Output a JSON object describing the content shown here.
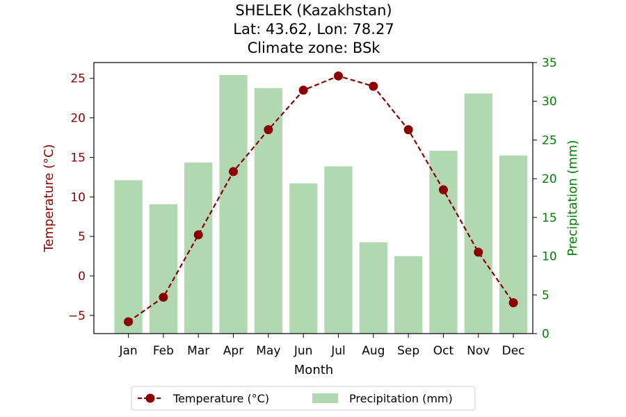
{
  "chart_data": {
    "type": "bar+line",
    "title_lines": [
      "SHELEK (Kazakhstan)",
      "Lat: 43.62, Lon: 78.27",
      "Climate zone: BSk"
    ],
    "xlabel": "Month",
    "categories": [
      "Jan",
      "Feb",
      "Mar",
      "Apr",
      "May",
      "Jun",
      "Jul",
      "Aug",
      "Sep",
      "Oct",
      "Nov",
      "Dec"
    ],
    "left_axis": {
      "label": "Temperature (°C)",
      "ylim": [
        -7.3,
        27
      ],
      "ticks": [
        -5,
        0,
        5,
        10,
        15,
        20,
        25
      ],
      "tick_labels": [
        "−5",
        "0",
        "5",
        "10",
        "15",
        "20",
        "25"
      ],
      "color": "#8b0000"
    },
    "right_axis": {
      "label": "Precipitation (mm)",
      "ylim": [
        0,
        35
      ],
      "ticks": [
        0,
        5,
        10,
        15,
        20,
        25,
        30,
        35
      ],
      "tick_labels": [
        "0",
        "5",
        "10",
        "15",
        "20",
        "25",
        "30",
        "35"
      ],
      "color": "#008000"
    },
    "series": [
      {
        "name": "Temperature (°C)",
        "kind": "line",
        "axis": "left",
        "style": "dashed with circle markers",
        "color": "#8b0000",
        "values": [
          -5.8,
          -2.7,
          5.2,
          13.2,
          18.5,
          23.5,
          25.3,
          24.0,
          18.5,
          10.9,
          3.0,
          -3.4
        ]
      },
      {
        "name": "Precipitation (mm)",
        "kind": "bar",
        "axis": "right",
        "color": "#b2d8b2",
        "values": [
          19.8,
          16.7,
          22.1,
          33.4,
          31.7,
          19.4,
          21.6,
          11.8,
          10.0,
          23.6,
          31.0,
          23.0
        ]
      }
    ],
    "legend": {
      "position": "bottom-center",
      "ncol": 2
    },
    "grid": false
  }
}
